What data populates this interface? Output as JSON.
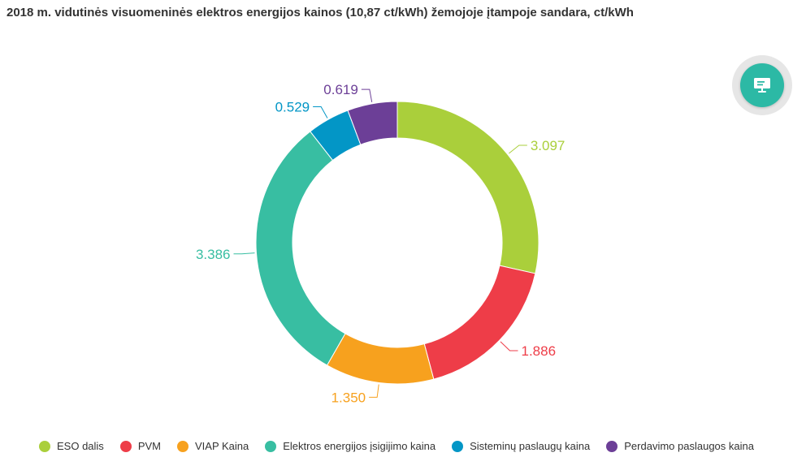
{
  "title": "2018 m. vidutinės visuomeninės elektros energijos kainos (10,87 ct/kWh)  žemojoje įtampoje sandara, ct/kWh",
  "chart_data": {
    "type": "pie",
    "donut": true,
    "legend": "bottom",
    "slices": [
      {
        "name": "ESO dalis",
        "value": 3.097,
        "label": "3.097",
        "color": "#aacf3b"
      },
      {
        "name": "PVM",
        "value": 1.886,
        "label": "1.886",
        "color": "#ee3d48"
      },
      {
        "name": "VIAP Kaina",
        "value": 1.35,
        "label": "1.350",
        "color": "#f7a11e"
      },
      {
        "name": "Elektros energijos įsigijimo kaina",
        "value": 3.386,
        "label": "3.386",
        "color": "#38bea2"
      },
      {
        "name": "Sisteminų paslaugų kaina",
        "value": 0.529,
        "label": "0.529",
        "color": "#0396c6"
      },
      {
        "name": "Perdavimo paslaugos kaina",
        "value": 0.619,
        "label": "0.619",
        "color": "#6c3f97"
      }
    ]
  },
  "fab": {
    "icon": "presentation-icon"
  }
}
